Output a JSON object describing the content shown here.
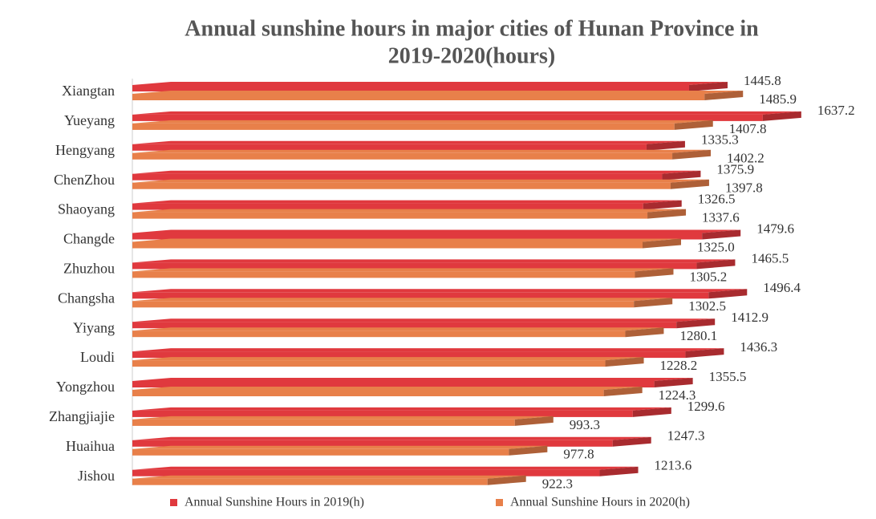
{
  "chart_data": {
    "type": "bar3d_horizontal",
    "title": [
      "Annual sunshine hours in major cities of Hunan Province in",
      "2019-2020(hours)"
    ],
    "categories": [
      "Xiangtan",
      "Yueyang",
      "Hengyang",
      "ChenZhou",
      "Shaoyang",
      "Changde",
      "Zhuzhou",
      "Changsha",
      "Yiyang",
      "Loudi",
      "Yongzhou",
      "Zhangjiajie",
      "Huaihua",
      "Jishou"
    ],
    "xlim": [
      0,
      1700
    ],
    "legend": "bottom",
    "series": [
      {
        "name": "Annual Sunshine Hours in 2019(h)",
        "color": "#e0393e",
        "values": [
          1445.8,
          1637.2,
          1335.3,
          1375.9,
          1326.5,
          1479.6,
          1465.5,
          1496.4,
          1412.9,
          1436.3,
          1355.5,
          1299.6,
          1247.3,
          1213.6
        ],
        "value_labels": [
          "1445.8",
          "1637.2",
          "1335.3",
          "1375.9",
          "1326.5",
          "1479.6",
          "1465.5",
          "1496.4",
          "1412.9",
          "1436.3",
          "1355.5",
          "1299.6",
          "1247.3",
          "1213.6"
        ]
      },
      {
        "name": "Annual Sunshine Hours in 2020(h)",
        "color": "#e8804a",
        "values": [
          1485.9,
          1407.8,
          1402.2,
          1397.8,
          1337.6,
          1325.0,
          1305.2,
          1302.5,
          1280.1,
          1228.2,
          1224.3,
          993.3,
          977.8,
          922.3
        ],
        "value_labels": [
          "1485.9",
          "1407.8",
          "1402.2",
          "1397.8",
          "1337.6",
          "1325.0",
          "1305.2",
          "1302.5",
          "1280.1",
          "1228.2",
          "1224.3",
          "993.3",
          "977.8",
          "922.3"
        ]
      }
    ]
  }
}
